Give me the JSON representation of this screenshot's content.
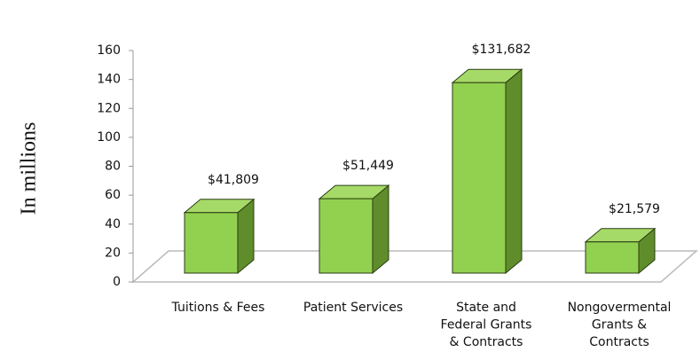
{
  "chart_data": {
    "type": "bar3d",
    "y_axis_label": "In millions",
    "categories": [
      "Tuitions & Fees",
      "Patient Services",
      "State and\nFederal Grants\n& Contracts",
      "Nongovermental\nGrants &\nContracts"
    ],
    "values": [
      41.809,
      51.449,
      131.682,
      21.579
    ],
    "value_labels": [
      "$41,809",
      "$51,449",
      "$131,682",
      "$21,579"
    ],
    "color": "#92d050",
    "ylim": [
      0,
      160
    ],
    "yticks": [
      0,
      20,
      40,
      60,
      80,
      100,
      120,
      140,
      160
    ]
  }
}
